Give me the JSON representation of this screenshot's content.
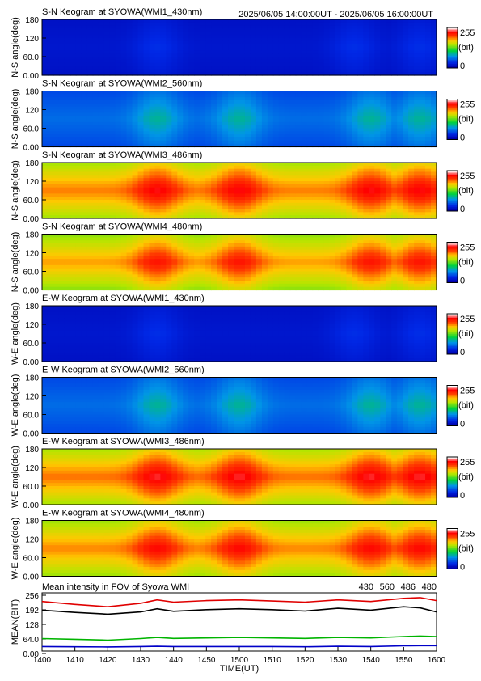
{
  "header": {
    "time_range": "2025/06/05 14:00:00UT - 2025/06/05 16:00:00UT"
  },
  "colors": {
    "c430": "#0000c8",
    "c560": "#00b400",
    "c486": "#e00000",
    "c480": "#000000"
  },
  "chart_data": [
    {
      "type": "heatmap",
      "title": "S-N Keogram at SYOWA(WMI1_430nm)",
      "ylabel": "N-S angle(deg)",
      "yticks": [
        "180",
        "120",
        "60.0",
        "0.00"
      ],
      "ylim": [
        0,
        180
      ],
      "colorbar": {
        "max": "255",
        "unit": "(bit)",
        "min": "0"
      },
      "peak_times_hhmm": [
        "1435",
        "1535",
        "1555"
      ],
      "peak_level": 0.13,
      "base_level": 0.07
    },
    {
      "type": "heatmap",
      "title": "S-N Keogram at SYOWA(WMI2_560nm)",
      "ylabel": "N-S angle(deg)",
      "yticks": [
        "180",
        "120",
        "60.0",
        "0.00"
      ],
      "ylim": [
        0,
        180
      ],
      "colorbar": {
        "max": "255",
        "unit": "(bit)",
        "min": "0"
      },
      "peak_times_hhmm": [
        "1435",
        "1500",
        "1540",
        "1555"
      ],
      "peak_level": 0.35,
      "base_level": 0.22
    },
    {
      "type": "heatmap",
      "title": "S-N Keogram at SYOWA(WMI3_486nm)",
      "ylabel": "N-S angle(deg)",
      "yticks": [
        "180",
        "120",
        "60.0",
        "0.00"
      ],
      "ylim": [
        0,
        180
      ],
      "colorbar": {
        "max": "255",
        "unit": "(bit)",
        "min": "0"
      },
      "peak_times_hhmm": [
        "1435",
        "1500",
        "1540",
        "1555"
      ],
      "peak_level": 0.92,
      "base_level": 0.75
    },
    {
      "type": "heatmap",
      "title": "S-N Keogram at SYOWA(WMI4_480nm)",
      "ylabel": "N-S angle(deg)",
      "yticks": [
        "180",
        "120",
        "60.0",
        "0.00"
      ],
      "ylim": [
        0,
        180
      ],
      "colorbar": {
        "max": "255",
        "unit": "(bit)",
        "min": "0"
      },
      "peak_times_hhmm": [
        "1435",
        "1500",
        "1540",
        "1555"
      ],
      "peak_level": 0.88,
      "base_level": 0.72
    },
    {
      "type": "heatmap",
      "title": "E-W Keogram at SYOWA(WMI1_430nm)",
      "ylabel": "W-E angle(deg)",
      "yticks": [
        "180",
        "120",
        "60.0",
        "0.00"
      ],
      "ylim": [
        0,
        180
      ],
      "colorbar": {
        "max": "255",
        "unit": "(bit)",
        "min": "0"
      },
      "peak_times_hhmm": [
        "1435",
        "1535",
        "1555"
      ],
      "peak_level": 0.13,
      "base_level": 0.07
    },
    {
      "type": "heatmap",
      "title": "E-W Keogram at SYOWA(WMI2_560nm)",
      "ylabel": "W-E angle(deg)",
      "yticks": [
        "180",
        "120",
        "60.0",
        "0.00"
      ],
      "ylim": [
        0,
        180
      ],
      "colorbar": {
        "max": "255",
        "unit": "(bit)",
        "min": "0"
      },
      "peak_times_hhmm": [
        "1435",
        "1500",
        "1540",
        "1555"
      ],
      "peak_level": 0.35,
      "base_level": 0.22
    },
    {
      "type": "heatmap",
      "title": "E-W Keogram at SYOWA(WMI3_486nm)",
      "ylabel": "W-E angle(deg)",
      "yticks": [
        "180",
        "120",
        "60.0",
        "0.00"
      ],
      "ylim": [
        0,
        180
      ],
      "colorbar": {
        "max": "255",
        "unit": "(bit)",
        "min": "0"
      },
      "peak_times_hhmm": [
        "1435",
        "1500",
        "1540",
        "1555"
      ],
      "peak_level": 0.93,
      "base_level": 0.76
    },
    {
      "type": "heatmap",
      "title": "E-W Keogram at SYOWA(WMI4_480nm)",
      "ylabel": "W-E angle(deg)",
      "yticks": [
        "180",
        "120",
        "60.0",
        "0.00"
      ],
      "ylim": [
        0,
        180
      ],
      "colorbar": {
        "max": "255",
        "unit": "(bit)",
        "min": "0"
      },
      "peak_times_hhmm": [
        "1435",
        "1500",
        "1540",
        "1555"
      ],
      "peak_level": 0.9,
      "base_level": 0.74
    },
    {
      "type": "line",
      "title": "Mean intensity in FOV of Syowa WMI",
      "xlabel": "TIME(UT)",
      "ylabel": "MEAN(BIT)",
      "xticks": [
        "1400",
        "1410",
        "1420",
        "1430",
        "1440",
        "1450",
        "1500",
        "1510",
        "1520",
        "1530",
        "1540",
        "1550",
        "1600"
      ],
      "yticks": [
        "256",
        "192",
        "128",
        "64.0",
        "0.00"
      ],
      "ylim": [
        0,
        256
      ],
      "x": [
        0,
        10,
        20,
        30,
        35,
        40,
        50,
        60,
        70,
        80,
        90,
        100,
        110,
        115,
        120
      ],
      "series": [
        {
          "name": "430",
          "color": "#0000c8",
          "values": [
            20,
            19,
            18,
            20,
            21,
            20,
            20,
            20,
            20,
            19,
            21,
            20,
            23,
            24,
            24
          ]
        },
        {
          "name": "560",
          "color": "#00b400",
          "values": [
            55,
            52,
            48,
            55,
            60,
            56,
            58,
            60,
            58,
            56,
            60,
            58,
            64,
            66,
            64
          ]
        },
        {
          "name": "486",
          "color": "#e00000",
          "values": [
            218,
            205,
            195,
            210,
            225,
            215,
            222,
            225,
            220,
            215,
            225,
            218,
            232,
            235,
            222
          ]
        },
        {
          "name": "480",
          "color": "#000000",
          "values": [
            180,
            170,
            162,
            172,
            186,
            175,
            182,
            186,
            182,
            176,
            188,
            180,
            195,
            190,
            172
          ]
        }
      ],
      "legend_position": "top-right",
      "xaxis_start_minute_label": "1400"
    }
  ]
}
